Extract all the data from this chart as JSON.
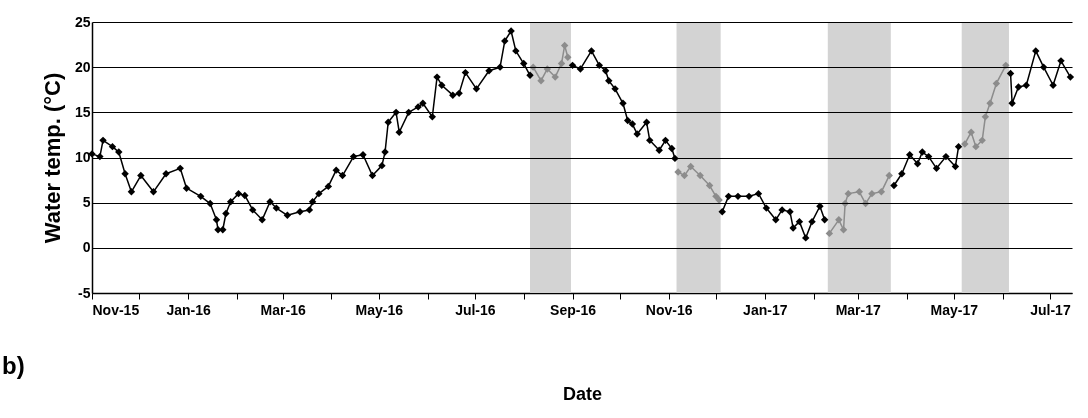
{
  "chart_data": {
    "type": "line",
    "xlabel": "Date",
    "ylabel": "Water temp. (°C)",
    "annotations": [
      "b)"
    ],
    "xlim": [
      "2015-11-01",
      "2017-07-15"
    ],
    "ylim": [
      -5,
      25
    ],
    "yticks": [
      -5,
      0,
      5,
      10,
      15,
      20,
      25
    ],
    "xticks": [
      {
        "value": "2015-11-01",
        "label": "Nov-15"
      },
      {
        "value": "2015-12-01",
        "label": null
      },
      {
        "value": "2016-01-01",
        "label": "Jan-16"
      },
      {
        "value": "2016-02-01",
        "label": null
      },
      {
        "value": "2016-03-01",
        "label": "Mar-16"
      },
      {
        "value": "2016-04-01",
        "label": null
      },
      {
        "value": "2016-05-01",
        "label": "May-16"
      },
      {
        "value": "2016-06-01",
        "label": null
      },
      {
        "value": "2016-07-01",
        "label": "Jul-16"
      },
      {
        "value": "2016-08-01",
        "label": null
      },
      {
        "value": "2016-09-01",
        "label": "Sep-16"
      },
      {
        "value": "2016-10-01",
        "label": null
      },
      {
        "value": "2016-11-01",
        "label": "Nov-16"
      },
      {
        "value": "2016-12-01",
        "label": null
      },
      {
        "value": "2017-01-01",
        "label": "Jan-17"
      },
      {
        "value": "2017-02-01",
        "label": null
      },
      {
        "value": "2017-03-01",
        "label": "Mar-17"
      },
      {
        "value": "2017-04-01",
        "label": null
      },
      {
        "value": "2017-05-01",
        "label": "May-17"
      },
      {
        "value": "2017-06-01",
        "label": null
      },
      {
        "value": "2017-07-01",
        "label": "Jul-17"
      }
    ],
    "grid": "y",
    "marker": "diamond",
    "line_style": "solid",
    "bands": [
      {
        "axis": "x",
        "from": "2016-08-05",
        "to": "2016-08-31",
        "color": "#d3d3d3"
      },
      {
        "axis": "x",
        "from": "2016-11-06",
        "to": "2016-12-04",
        "color": "#d3d3d3"
      },
      {
        "axis": "x",
        "from": "2017-02-10",
        "to": "2017-03-22",
        "color": "#d3d3d3"
      },
      {
        "axis": "x",
        "from": "2017-05-06",
        "to": "2017-06-05",
        "color": "#d3d3d3"
      }
    ],
    "series": [
      {
        "color": "#000000",
        "x": [
          "2015-11-01",
          "2015-11-06",
          "2015-11-08",
          "2015-11-14",
          "2015-11-18",
          "2015-11-22",
          "2015-11-26",
          "2015-12-02",
          "2015-12-10",
          "2015-12-18",
          "2015-12-27",
          "2015-12-31",
          "2016-01-09",
          "2016-01-15",
          "2016-01-19",
          "2016-01-20",
          "2016-01-23",
          "2016-01-25",
          "2016-01-28",
          "2016-02-02",
          "2016-02-06",
          "2016-02-11",
          "2016-02-17",
          "2016-02-22",
          "2016-02-26",
          "2016-03-04",
          "2016-03-12",
          "2016-03-18",
          "2016-03-20",
          "2016-03-24",
          "2016-03-30",
          "2016-04-04",
          "2016-04-08",
          "2016-04-15",
          "2016-04-21",
          "2016-04-27",
          "2016-05-03",
          "2016-05-05",
          "2016-05-07",
          "2016-05-12",
          "2016-05-14",
          "2016-05-20",
          "2016-05-26",
          "2016-05-29",
          "2016-06-04",
          "2016-06-07",
          "2016-06-10",
          "2016-06-17",
          "2016-06-21",
          "2016-06-25",
          "2016-07-02",
          "2016-07-10",
          "2016-07-17",
          "2016-07-20",
          "2016-07-24",
          "2016-07-27",
          "2016-08-01",
          "2016-08-05",
          null,
          "2016-09-01",
          "2016-09-06",
          "2016-09-13",
          "2016-09-18",
          "2016-09-22",
          "2016-09-24",
          "2016-09-28",
          "2016-10-03",
          "2016-10-06",
          "2016-10-09",
          "2016-10-12",
          "2016-10-18",
          "2016-10-20",
          "2016-10-26",
          "2016-10-30",
          "2016-11-03",
          "2016-11-05",
          null,
          "2016-12-05",
          "2016-12-09",
          "2016-12-15",
          "2016-12-22",
          "2016-12-28",
          "2017-01-02",
          "2017-01-08",
          "2017-01-12",
          "2017-01-17",
          "2017-01-19",
          "2017-01-23",
          "2017-01-27",
          "2017-01-31",
          "2017-02-05",
          "2017-02-08",
          null,
          "2017-03-24",
          "2017-03-29",
          "2017-04-03",
          "2017-04-08",
          "2017-04-11",
          "2017-04-15",
          "2017-04-20",
          "2017-04-26",
          "2017-05-02",
          "2017-05-04",
          null,
          "2017-06-06",
          "2017-06-07",
          "2017-06-11",
          "2017-06-16",
          "2017-06-22",
          "2017-06-27",
          "2017-07-03",
          "2017-07-08",
          "2017-07-14"
        ],
        "values": [
          10.4,
          10.1,
          11.9,
          11.2,
          10.6,
          8.2,
          6.2,
          8.0,
          6.2,
          8.2,
          8.8,
          6.6,
          5.7,
          4.9,
          3.1,
          2.0,
          2.0,
          3.8,
          5.1,
          6.0,
          5.8,
          4.2,
          3.1,
          5.1,
          4.4,
          3.6,
          4.0,
          4.2,
          5.1,
          6.0,
          6.8,
          8.6,
          8.0,
          10.1,
          10.3,
          8.0,
          9.1,
          10.6,
          13.9,
          15.0,
          12.8,
          15.0,
          15.6,
          16.0,
          14.5,
          18.9,
          18.0,
          16.9,
          17.1,
          19.4,
          17.6,
          19.6,
          20.0,
          22.9,
          24.0,
          21.8,
          20.4,
          19.1,
          null,
          20.2,
          19.8,
          21.8,
          20.2,
          19.6,
          18.5,
          17.6,
          16.0,
          14.1,
          13.7,
          12.6,
          13.9,
          11.9,
          10.8,
          11.9,
          11.0,
          9.9,
          null,
          4.0,
          5.7,
          5.7,
          5.7,
          6.0,
          4.4,
          3.1,
          4.2,
          4.0,
          2.2,
          2.9,
          1.1,
          2.9,
          4.6,
          3.1,
          null,
          6.9,
          8.2,
          10.3,
          9.3,
          10.6,
          10.1,
          8.8,
          10.1,
          9.0,
          11.2,
          null,
          19.3,
          16.0,
          17.8,
          18.0,
          21.8,
          20.0,
          18.0,
          20.7,
          18.9
        ]
      },
      {
        "color": "#8c8c8c",
        "x": [
          "2016-08-07",
          "2016-08-12",
          "2016-08-16",
          "2016-08-21",
          "2016-08-25",
          "2016-08-27",
          "2016-08-29",
          null,
          "2016-11-07",
          "2016-11-11",
          "2016-11-15",
          "2016-11-21",
          "2016-11-27",
          "2016-12-01",
          "2016-12-03",
          null,
          "2017-02-11",
          "2017-02-17",
          "2017-02-20",
          "2017-02-21",
          "2017-02-23",
          "2017-03-02",
          "2017-03-06",
          "2017-03-10",
          "2017-03-16",
          "2017-03-21",
          null,
          "2017-05-08",
          "2017-05-12",
          "2017-05-15",
          "2017-05-19",
          "2017-05-21",
          "2017-05-24",
          "2017-05-28",
          "2017-06-03"
        ],
        "values": [
          20.0,
          18.5,
          19.8,
          18.9,
          20.4,
          22.4,
          21.1,
          null,
          8.4,
          8.0,
          9.0,
          8.0,
          6.9,
          5.7,
          5.3,
          null,
          1.6,
          3.1,
          2.0,
          4.9,
          6.0,
          6.2,
          4.9,
          6.0,
          6.2,
          8.0,
          null,
          11.5,
          12.8,
          11.2,
          11.9,
          14.5,
          16.0,
          18.2,
          20.2
        ]
      }
    ]
  }
}
